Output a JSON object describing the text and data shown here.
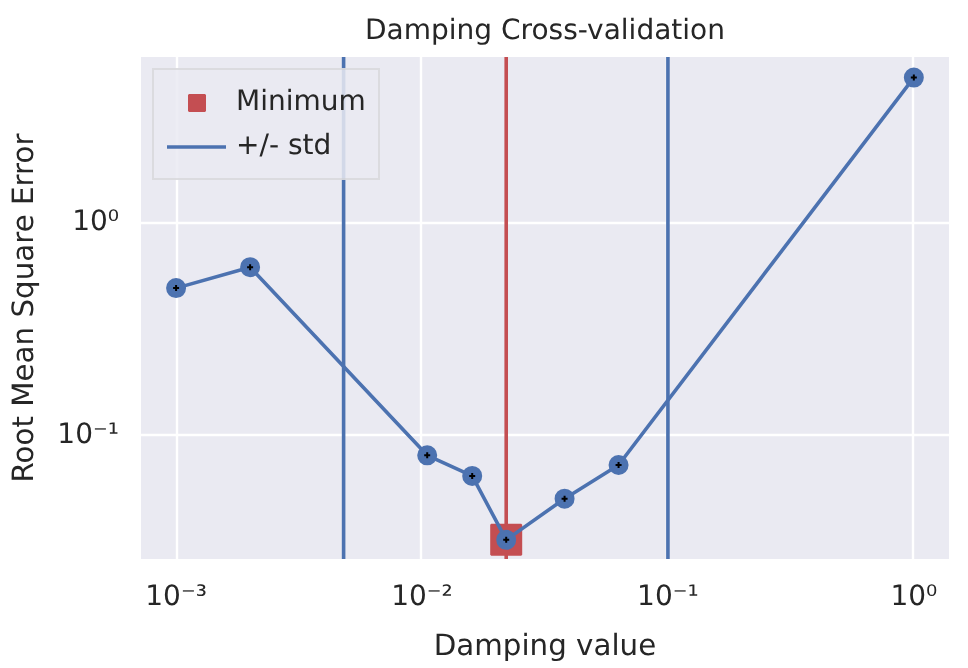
{
  "chart_data": {
    "type": "line",
    "title": "Damping Cross-validation",
    "xlabel": "Damping value",
    "ylabel": "Root Mean Square Error",
    "log": "xy",
    "xlim": [
      0.00072,
      1.39
    ],
    "ylim": [
      0.026,
      6.0
    ],
    "xticks": [
      {
        "value": 0.001,
        "label": "10⁻³"
      },
      {
        "value": 0.01,
        "label": "10⁻²"
      },
      {
        "value": 0.1,
        "label": "10⁻¹"
      },
      {
        "value": 1,
        "label": "10⁰"
      }
    ],
    "yticks": [
      {
        "value": 0.1,
        "label": "10⁻¹"
      },
      {
        "value": 1,
        "label": "10⁰"
      }
    ],
    "grid": true,
    "legend": "top left",
    "marker": "circle",
    "line_style": "solid",
    "series": [
      {
        "color": "#4c72b0",
        "x": [
          0.001,
          0.002,
          0.0105,
          0.016,
          0.022,
          0.038,
          0.063,
          1.0
        ],
        "values": [
          0.49,
          0.615,
          0.08,
          0.064,
          0.032,
          0.05,
          0.072,
          4.8
        ]
      },
      {
        "type": "scatter",
        "name": "Minimum",
        "color": "#c44e52",
        "marker": "square",
        "x": [
          0.022
        ],
        "values": [
          0.032
        ]
      }
    ],
    "ref_lines": [
      {
        "axis": "x",
        "value": 0.0048,
        "label": "+/- std",
        "color": "#4c72b0"
      },
      {
        "axis": "x",
        "value": 0.1,
        "color": "#4c72b0"
      },
      {
        "axis": "x",
        "value": 0.022,
        "color": "#c44e52"
      }
    ]
  }
}
